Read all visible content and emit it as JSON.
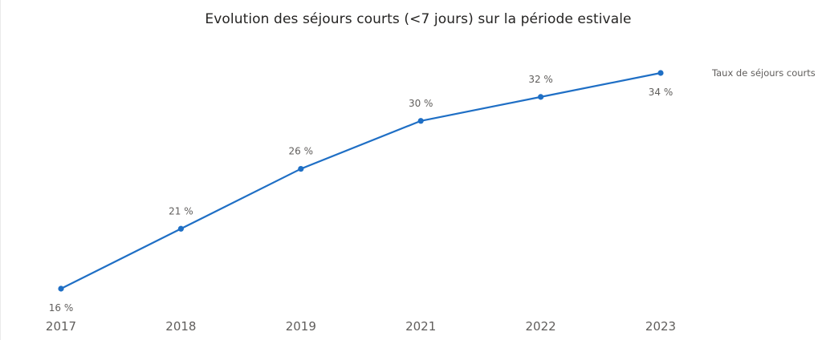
{
  "chart_data": {
    "type": "line",
    "title": "Evolution des séjours courts (<7 jours) sur la période estivale",
    "x": [
      "2017",
      "2018",
      "2019",
      "2021",
      "2022",
      "2023"
    ],
    "series": [
      {
        "name": "Taux de séjours courts",
        "values": [
          16,
          21,
          26,
          30,
          32,
          34
        ],
        "labels": [
          "16 %",
          "21 %",
          "26 %",
          "30 %",
          "32 %",
          "34 %"
        ],
        "label_positions": [
          "below",
          "above",
          "above",
          "above",
          "above",
          "below"
        ],
        "color": "#1f6fc5"
      }
    ],
    "xlabel": "",
    "ylabel": "",
    "grid": false,
    "legend": "right-inline"
  }
}
